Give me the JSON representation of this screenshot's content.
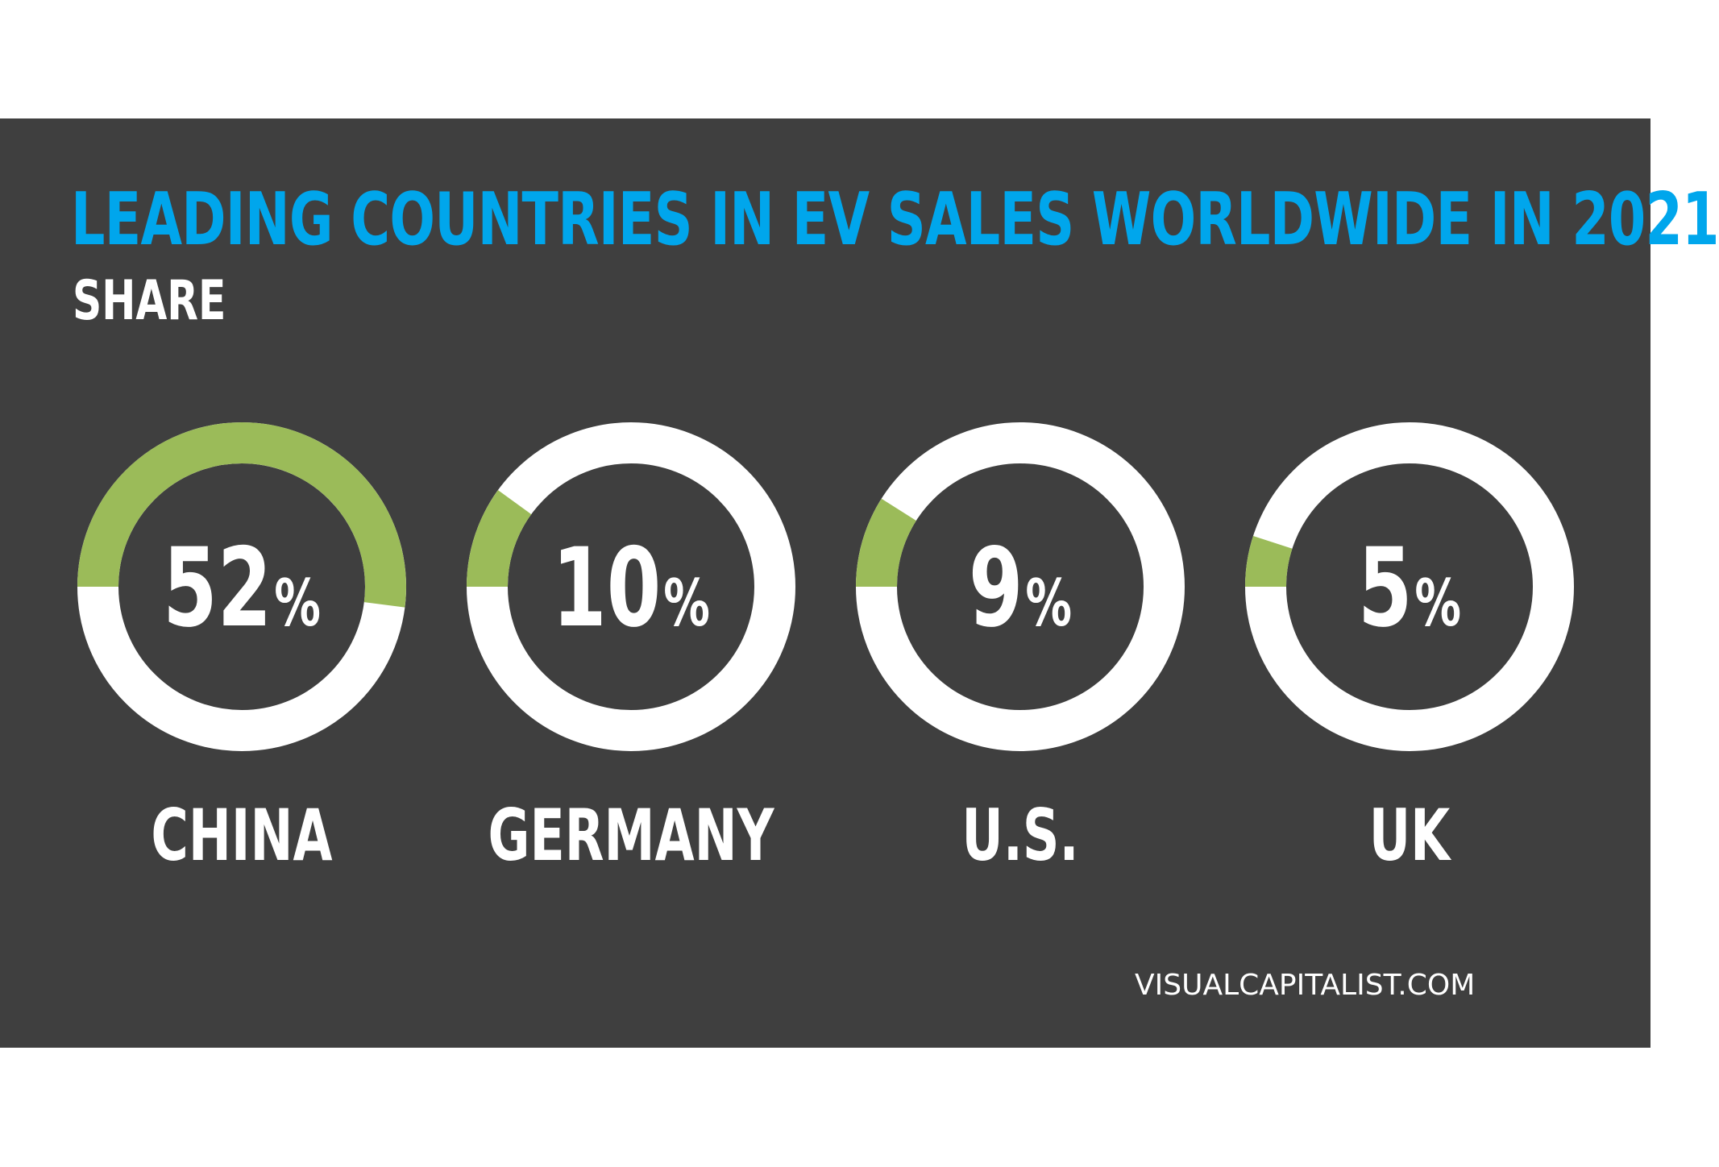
{
  "title": "LEADING COUNTRIES IN EV SALES WORLDWIDE IN 2021",
  "subtitle": "SHARE",
  "source": "VISUALCAPITALIST.COM",
  "colors": {
    "background": "#3f3f3f",
    "title": "#00a6ec",
    "text": "#ffffff",
    "filled": "#9bbb59",
    "remainder": "#ffffff"
  },
  "chart_data": {
    "type": "pie",
    "title": "LEADING COUNTRIES IN EV SALES WORLDWIDE IN 2021",
    "subtitle": "SHARE",
    "unit": "%",
    "categories": [
      "CHINA",
      "GERMANY",
      "U.S.",
      "UK"
    ],
    "values": [
      52,
      10,
      9,
      5
    ],
    "labels": [
      "52",
      "10",
      "9",
      "5"
    ]
  }
}
